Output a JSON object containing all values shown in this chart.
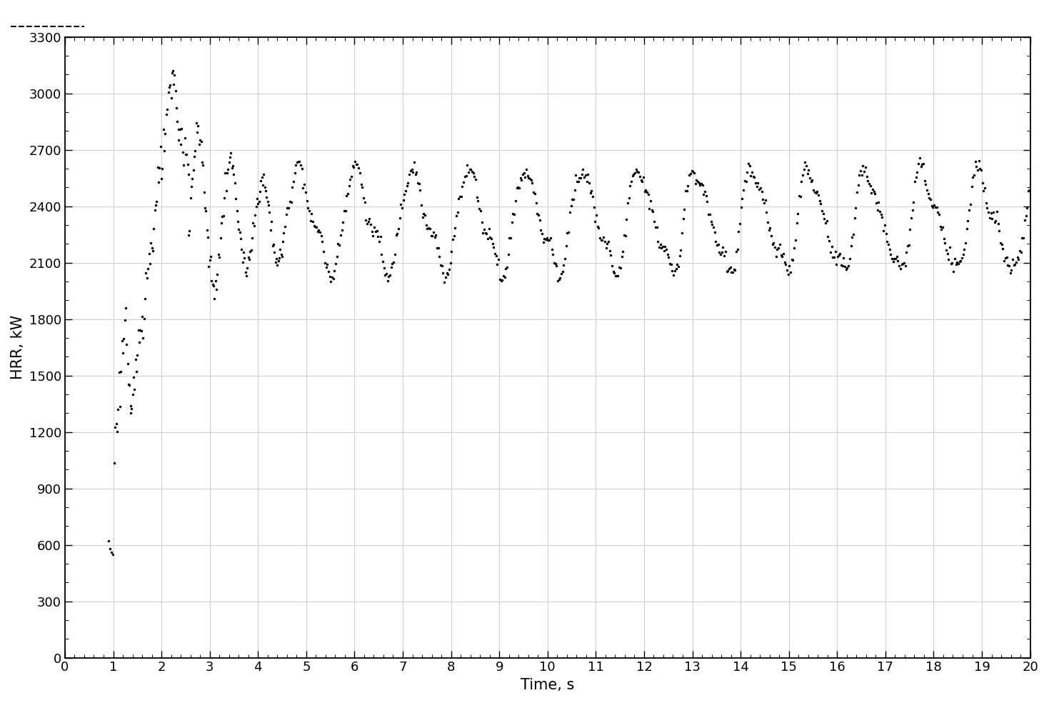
{
  "xlabel": "Time, s",
  "ylabel": "HRR, kW",
  "xlim": [
    0,
    20
  ],
  "ylim": [
    0,
    3300
  ],
  "xticks": [
    0,
    1,
    2,
    3,
    4,
    5,
    6,
    7,
    8,
    9,
    10,
    11,
    12,
    13,
    14,
    15,
    16,
    17,
    18,
    19,
    20
  ],
  "yticks": [
    0,
    300,
    600,
    900,
    1200,
    1500,
    1800,
    2100,
    2400,
    2700,
    3000,
    3300
  ],
  "line_color": "#000000",
  "background_color": "#ffffff",
  "grid_color": "#d0d0d0",
  "marker_size": 2.5,
  "linewidth": 0.8
}
